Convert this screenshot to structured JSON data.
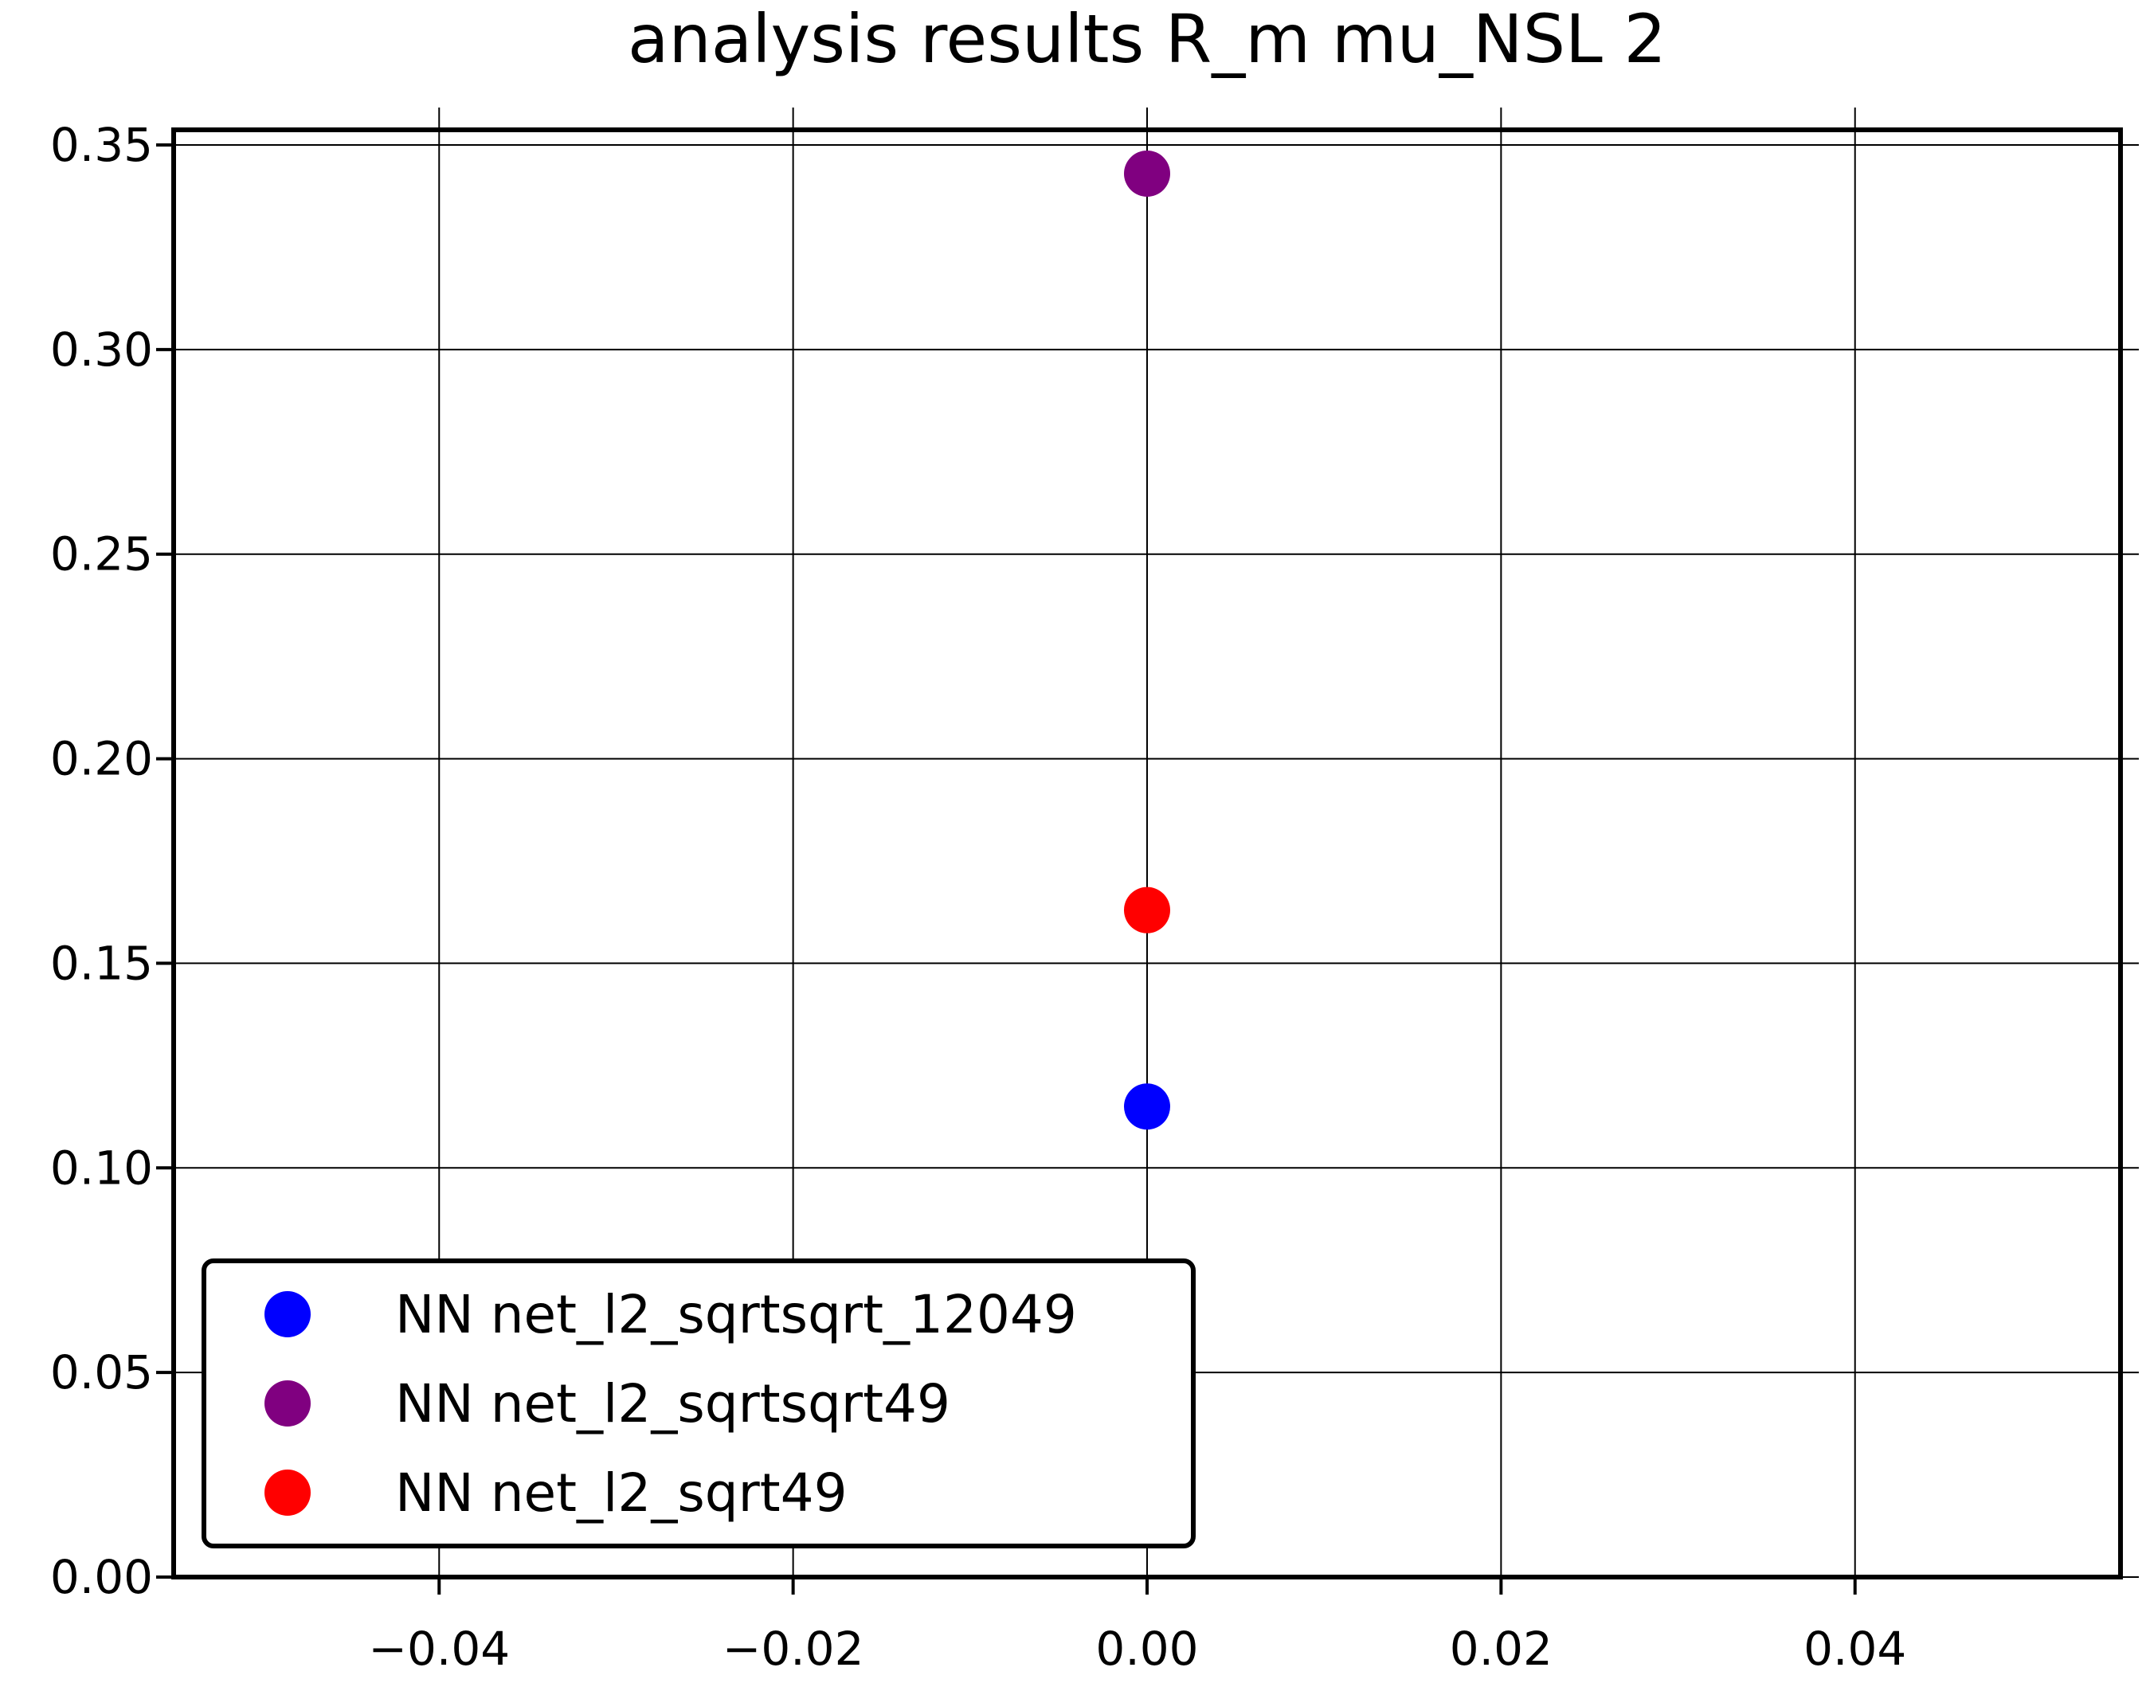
{
  "chart_data": {
    "type": "scatter",
    "title": "analysis results R_m  mu_NSL 2",
    "xlabel": "",
    "ylabel": "",
    "xlim": [
      -0.055,
      0.055
    ],
    "ylim": [
      0.0,
      0.35
    ],
    "xticks": [
      -0.04,
      -0.02,
      0.0,
      0.02,
      0.04
    ],
    "xtick_labels": [
      "−0.04",
      "−0.02",
      "0.00",
      "0.02",
      "0.04"
    ],
    "yticks": [
      0.0,
      0.05,
      0.1,
      0.15,
      0.2,
      0.25,
      0.3,
      0.35
    ],
    "ytick_labels": [
      "0.00",
      "0.05",
      "0.10",
      "0.15",
      "0.20",
      "0.25",
      "0.30",
      "0.35"
    ],
    "grid": true,
    "legend_position": "lower-left",
    "series": [
      {
        "name": "NN net_l2_sqrtsqrt_12049",
        "color": "#0000ff",
        "points": [
          {
            "x": 0.0,
            "y": 0.115
          }
        ]
      },
      {
        "name": "NN net_l2_sqrtsqrt49",
        "color": "#800080",
        "points": [
          {
            "x": 0.0,
            "y": 0.343
          }
        ]
      },
      {
        "name": "NN net_l2_sqrt49",
        "color": "#ff0000",
        "points": [
          {
            "x": 0.0,
            "y": 0.163
          }
        ]
      }
    ]
  }
}
